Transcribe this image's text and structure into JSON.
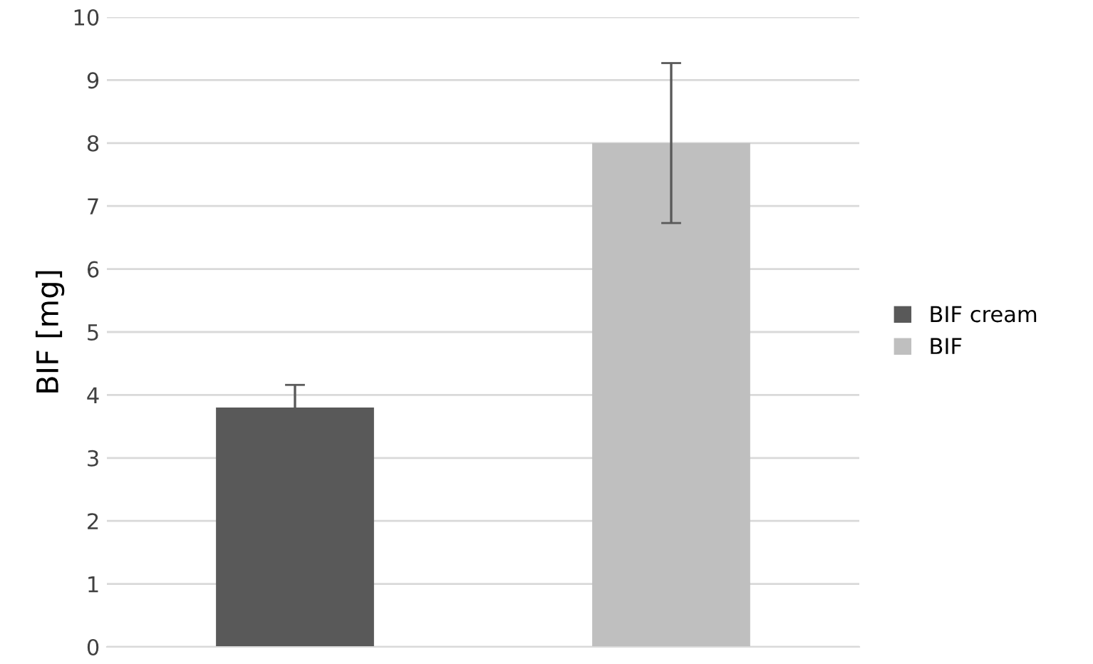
{
  "chart_data": {
    "type": "bar",
    "ylabel": "BIF [mg]",
    "categories": [
      null,
      null
    ],
    "series": [
      {
        "name": "BIF cream",
        "color": "#595959",
        "values": [
          3.8,
          null
        ],
        "errors": [
          0.36,
          null
        ]
      },
      {
        "name": "BIF",
        "color": "#bfbfbf",
        "values": [
          null,
          8.0
        ],
        "errors": [
          null,
          1.27
        ]
      }
    ],
    "ylim": [
      0,
      10
    ],
    "yticks": [
      0,
      1,
      2,
      3,
      4,
      5,
      6,
      7,
      8,
      9,
      10
    ],
    "grid": "y",
    "legend": "right"
  }
}
